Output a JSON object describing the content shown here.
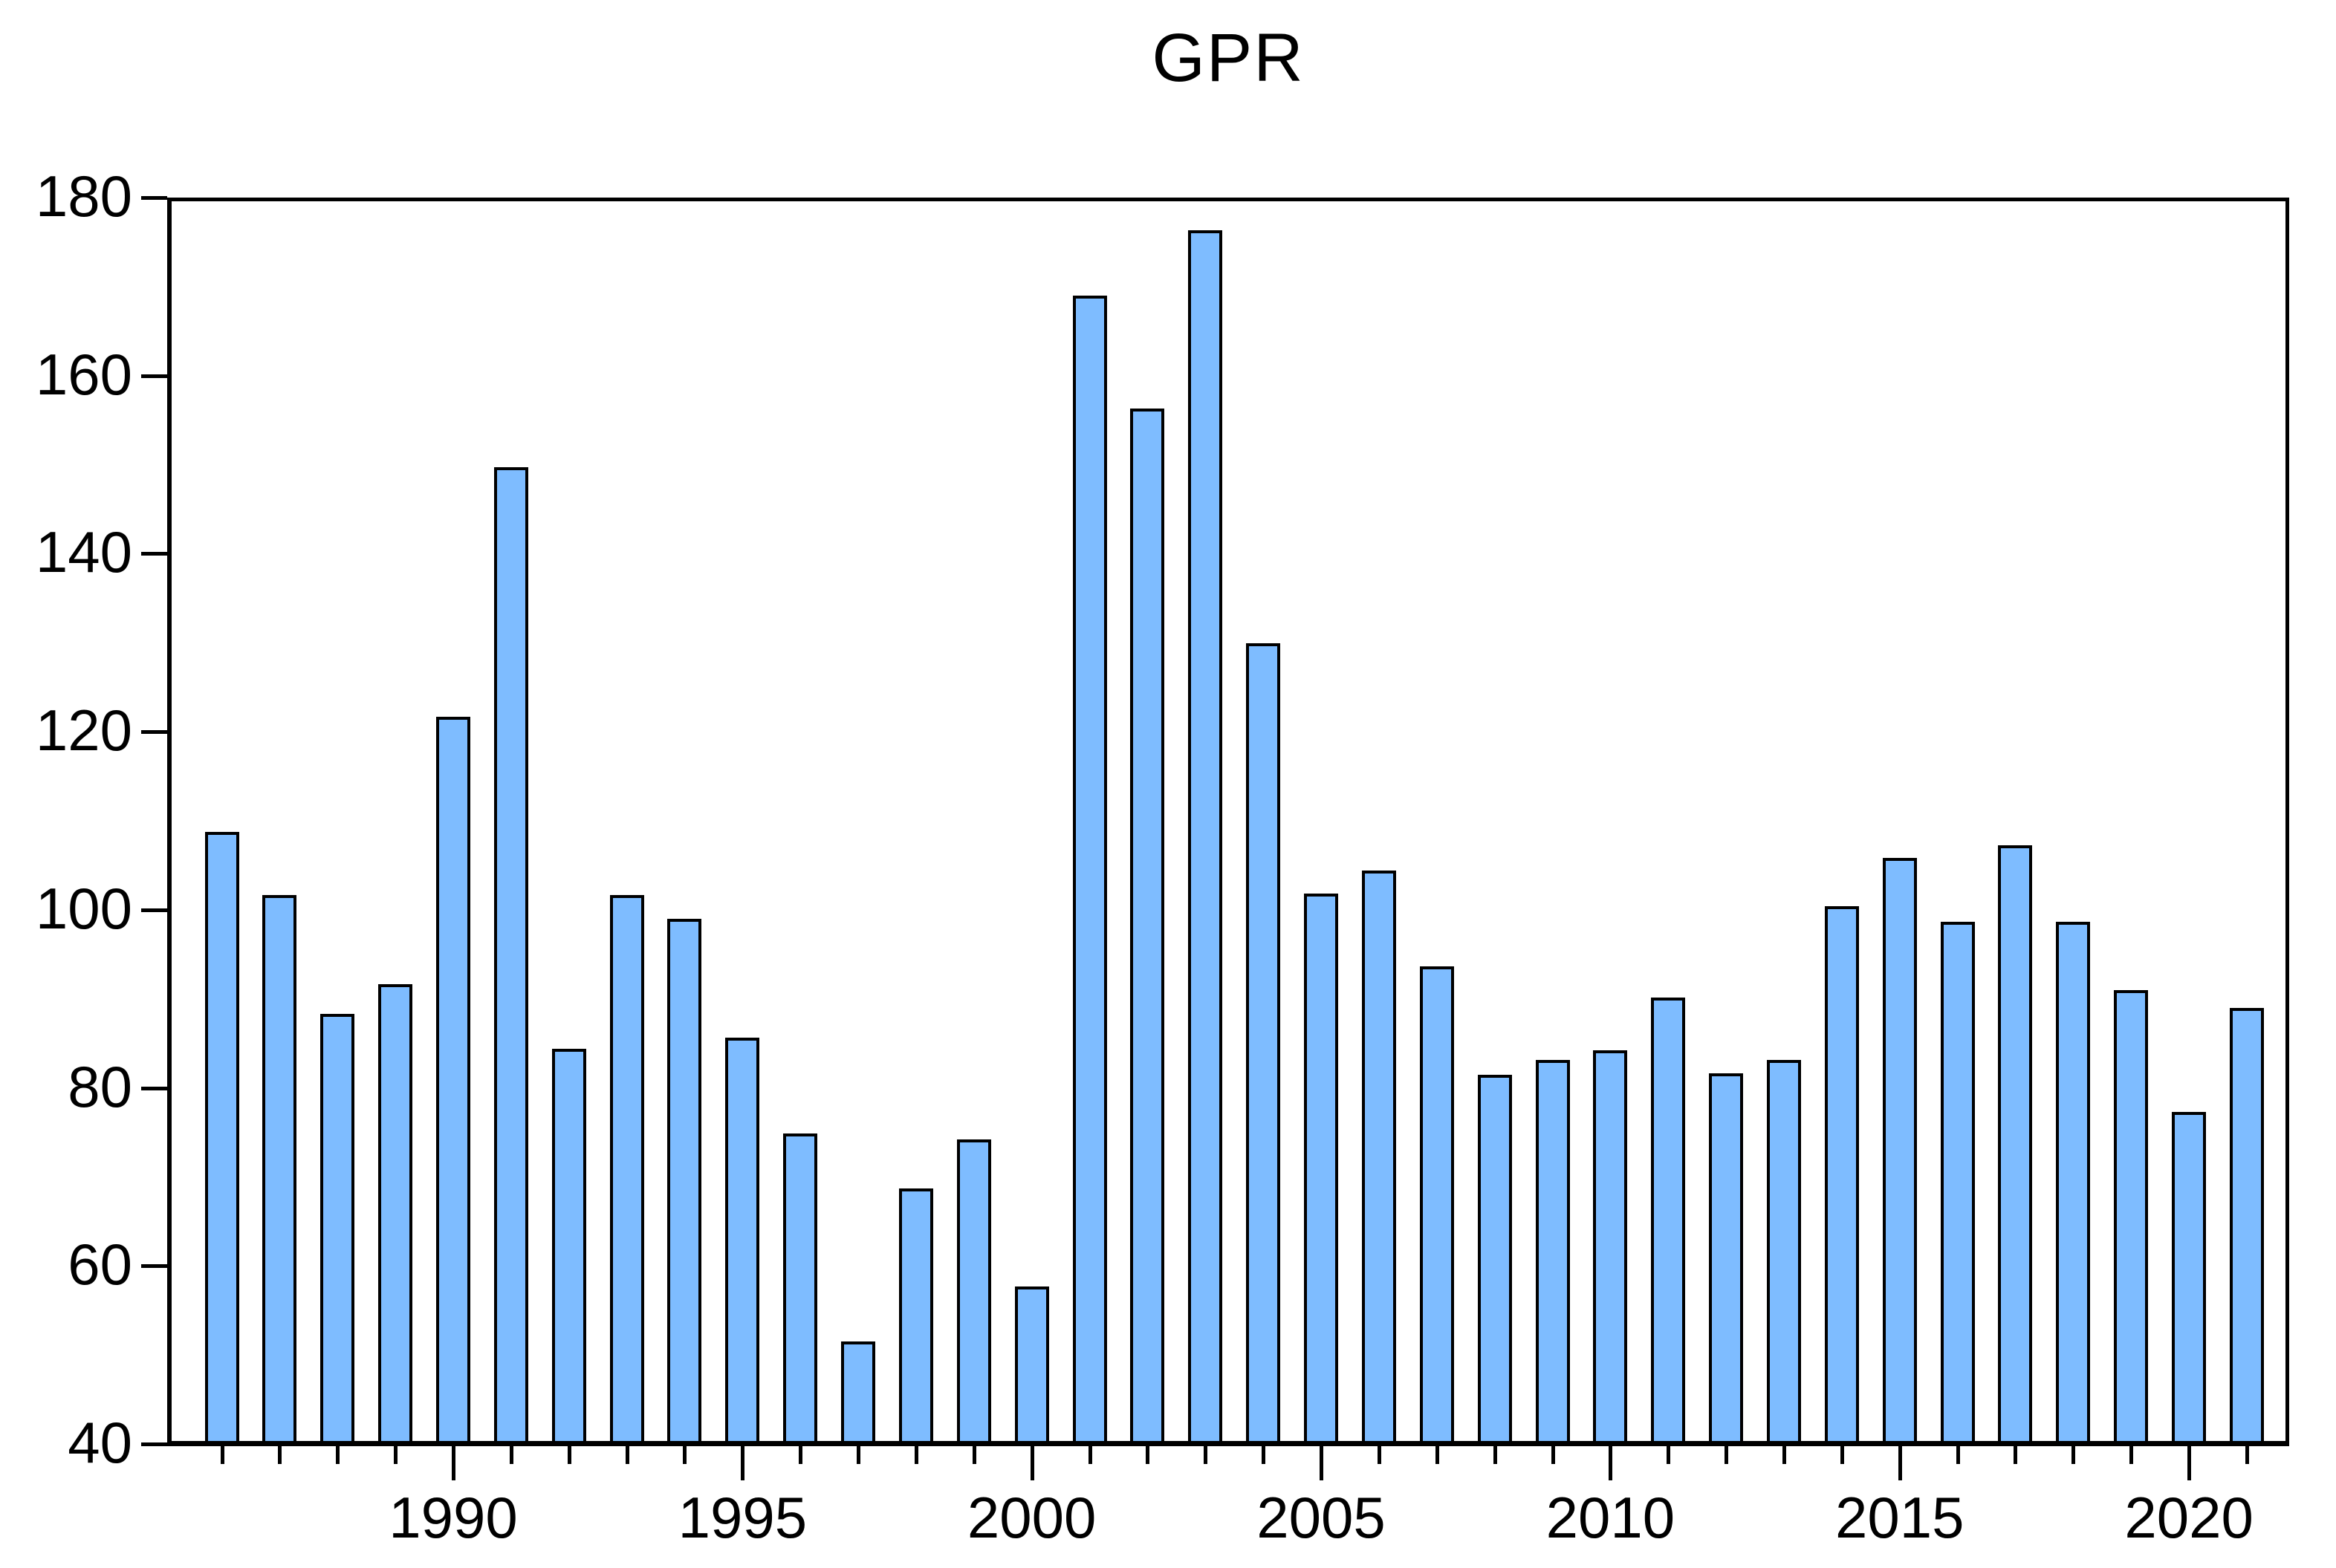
{
  "title": "GPR",
  "chart_data": {
    "type": "bar",
    "title": "GPR",
    "xlabel": "",
    "ylabel": "",
    "x": [
      1986,
      1987,
      1988,
      1989,
      1990,
      1991,
      1992,
      1993,
      1994,
      1995,
      1996,
      1997,
      1998,
      1999,
      2000,
      2001,
      2002,
      2003,
      2004,
      2005,
      2006,
      2007,
      2008,
      2009,
      2010,
      2011,
      2012,
      2013,
      2014,
      2015,
      2016,
      2017,
      2018,
      2019,
      2020,
      2021
    ],
    "values": [
      108.5,
      101.4,
      88.1,
      91.4,
      121.5,
      149.6,
      84.1,
      101.4,
      98.8,
      85.4,
      74.6,
      51.2,
      68.4,
      73.9,
      57.4,
      168.9,
      156.2,
      176.2,
      129.8,
      101.6,
      104.2,
      93.4,
      81.2,
      82.9,
      84.0,
      89.9,
      81.4,
      82.9,
      100.2,
      105.6,
      98.4,
      107.0,
      98.4,
      90.7,
      77.0,
      88.7
    ],
    "ylim": [
      40,
      180
    ],
    "yticks": [
      40,
      60,
      80,
      100,
      120,
      140,
      160,
      180
    ],
    "xtick_labeled_years": [
      1990,
      1995,
      2000,
      2005,
      2010,
      2015,
      2020
    ],
    "xtick_labels": [
      "1990",
      "1995",
      "2000",
      "2005",
      "2010",
      "2015",
      "2020"
    ],
    "grid": "off",
    "legend": "none",
    "bar_fill_color": "#7EBCFF",
    "bar_border_color": "#000000",
    "axis_color": "#000000",
    "background_color": "#FFFFFF"
  }
}
